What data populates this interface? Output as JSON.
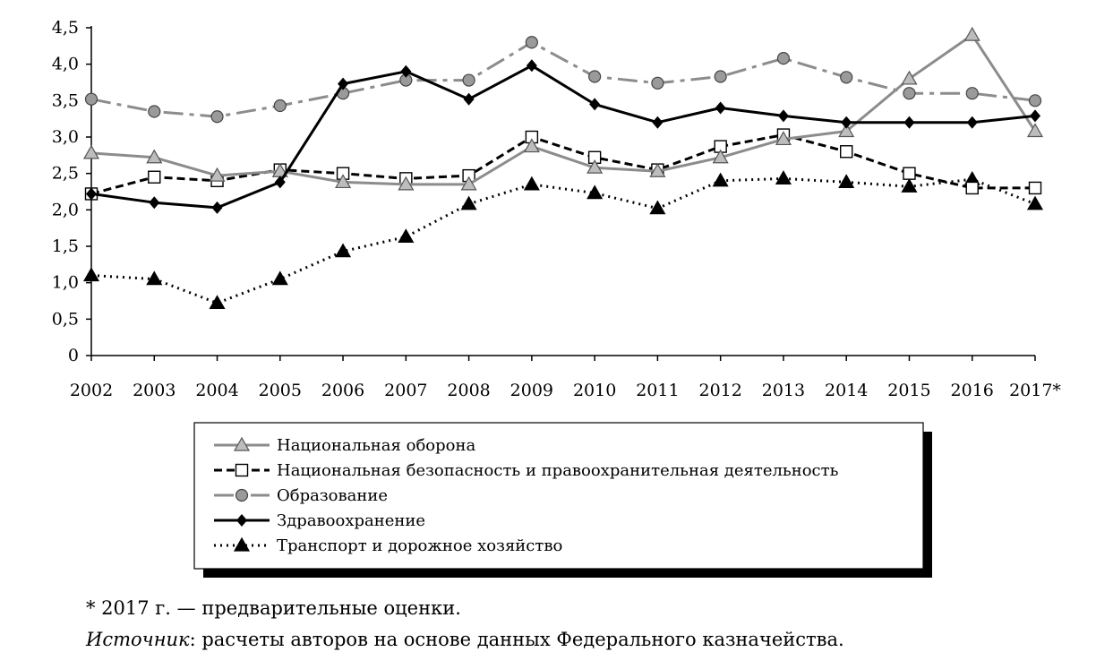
{
  "chart_data": {
    "type": "line",
    "title": "",
    "xlabel": "",
    "ylabel": "",
    "ylim": [
      0,
      4.5
    ],
    "yticks": [
      "0",
      "0,5",
      "1,0",
      "1,5",
      "2,0",
      "2,5",
      "3,0",
      "3,5",
      "4,0",
      "4,5"
    ],
    "grid": false,
    "legend_position": "bottom-center",
    "categories": [
      "2002",
      "2003",
      "2004",
      "2005",
      "2006",
      "2007",
      "2008",
      "2009",
      "2010",
      "2011",
      "2012",
      "2013",
      "2014",
      "2015",
      "2016",
      "2017*"
    ],
    "series": [
      {
        "name": "Национальная оборона",
        "marker": "triangle-gray",
        "line": "solid-gray",
        "color": "#8c8c8c",
        "values": [
          2.78,
          2.72,
          2.47,
          2.53,
          2.38,
          2.35,
          2.35,
          2.87,
          2.58,
          2.53,
          2.72,
          2.97,
          3.08,
          3.8,
          4.4,
          3.08
        ]
      },
      {
        "name": "Национальная безопасность и правоохранительная деятельность",
        "marker": "square-white",
        "line": "dashed-black",
        "color": "#000000",
        "values": [
          2.22,
          2.45,
          2.4,
          2.55,
          2.5,
          2.43,
          2.47,
          3.0,
          2.72,
          2.55,
          2.87,
          3.03,
          2.8,
          2.5,
          2.3,
          2.3
        ]
      },
      {
        "name": "Образование",
        "marker": "circle-gray",
        "line": "dashdot-gray",
        "color": "#8c8c8c",
        "values": [
          3.52,
          3.35,
          3.28,
          3.43,
          3.6,
          3.78,
          3.78,
          4.3,
          3.83,
          3.74,
          3.83,
          4.08,
          3.82,
          3.6,
          3.6,
          3.5
        ]
      },
      {
        "name": "Здравоохранение",
        "marker": "diamond-black",
        "line": "solid-black",
        "color": "#000000",
        "values": [
          2.22,
          2.1,
          2.03,
          2.38,
          3.73,
          3.9,
          3.52,
          3.98,
          3.45,
          3.2,
          3.4,
          3.29,
          3.2,
          3.2,
          3.2,
          3.29
        ]
      },
      {
        "name": "Транспорт и дорожное хозяйство",
        "marker": "triangle-black",
        "line": "dotted-black",
        "color": "#000000",
        "values": [
          1.1,
          1.05,
          0.72,
          1.05,
          1.43,
          1.63,
          2.08,
          2.35,
          2.23,
          2.02,
          2.4,
          2.43,
          2.38,
          2.32,
          2.42,
          2.08
        ]
      }
    ]
  },
  "footnote": "* 2017 г. — предварительные оценки.",
  "source_label": "Источник",
  "source_text": ": расчеты авторов на основе данных Федерального казначейства."
}
